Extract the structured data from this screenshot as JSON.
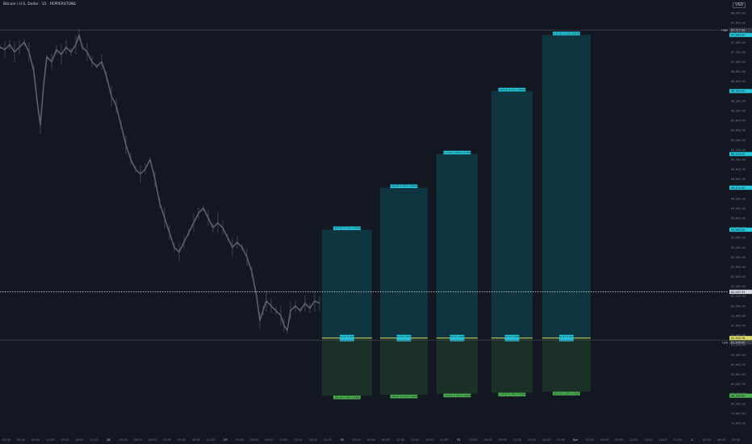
{
  "header": {
    "symbol_title": "Bitcoin / U.S. Dollar · 15 · PEPPERSTONE",
    "currency": "USD"
  },
  "colors": {
    "background": "#131722",
    "candle": "#5d606b",
    "target_zone": "#0f3a44",
    "target_label": "#26c6da",
    "stop_zone": "#1d3328",
    "stop_label": "#4caf50",
    "entry_line": "#d8d867",
    "price_line": "#e0e0e0"
  },
  "chart_data": {
    "type": "line",
    "y_axis": {
      "range": [
        79500,
        88100
      ],
      "ticks": [
        "88,000.00",
        "87,800.00",
        "87,600.00",
        "87,400.00",
        "87,200.00",
        "87,000.00",
        "86,800.00",
        "86,600.00",
        "86,400.00",
        "86,200.00",
        "86,000.00",
        "85,800.00",
        "85,600.00",
        "85,400.00",
        "85,200.00",
        "85,000.00",
        "84,800.00",
        "84,600.00",
        "84,400.00",
        "84,200.00",
        "84,000.00",
        "83,800.00",
        "83,600.00",
        "83,400.00",
        "83,200.00",
        "83,000.00",
        "82,800.00",
        "82,600.00",
        "82,400.00",
        "82,200.00",
        "82,000.00",
        "81,800.00",
        "81,600.00",
        "81,400.00",
        "81,200.00",
        "81,000.00",
        "80,800.00",
        "80,600.00",
        "80,400.00",
        "80,200.00",
        "80,000.00",
        "79,800.00",
        "79,600.00"
      ]
    },
    "x_axis": {
      "ticks": [
        "03:00",
        "06:00",
        "09:00",
        "12:00",
        "15:00",
        "18:00",
        "21:00",
        "28",
        "03:00",
        "06:00",
        "09:00",
        "12:00",
        "15:00",
        "18:00",
        "21:00",
        "29",
        "03:00",
        "06:00",
        "09:00",
        "12:00",
        "15:00",
        "18:00",
        "21:00",
        "30",
        "03:00",
        "06:00",
        "09:00",
        "12:00",
        "15:00",
        "18:00",
        "21:00",
        "31",
        "03:00",
        "06:00",
        "09:00",
        "12:00",
        "15:00",
        "18:00",
        "21:00",
        "Apr",
        "03:00",
        "06:00",
        "09:00",
        "12:00",
        "15:00",
        "18:00",
        "21:00",
        "2",
        "03:00",
        "06:00",
        "09:00"
      ]
    },
    "price_series": [
      [
        0,
        87300
      ],
      [
        6,
        87250
      ],
      [
        12,
        87350
      ],
      [
        18,
        87200
      ],
      [
        24,
        87300
      ],
      [
        30,
        87400
      ],
      [
        36,
        87200
      ],
      [
        42,
        86800
      ],
      [
        46,
        86200
      ],
      [
        50,
        85700
      ],
      [
        54,
        86500
      ],
      [
        58,
        87100
      ],
      [
        64,
        87000
      ],
      [
        70,
        87250
      ],
      [
        76,
        87150
      ],
      [
        82,
        87300
      ],
      [
        88,
        87200
      ],
      [
        94,
        87350
      ],
      [
        98,
        87550
      ],
      [
        102,
        87300
      ],
      [
        108,
        87200
      ],
      [
        114,
        87000
      ],
      [
        120,
        86900
      ],
      [
        126,
        87000
      ],
      [
        132,
        86700
      ],
      [
        138,
        86300
      ],
      [
        144,
        86100
      ],
      [
        150,
        85700
      ],
      [
        156,
        85300
      ],
      [
        162,
        85000
      ],
      [
        168,
        84800
      ],
      [
        174,
        84700
      ],
      [
        180,
        84800
      ],
      [
        186,
        85000
      ],
      [
        192,
        84600
      ],
      [
        198,
        84100
      ],
      [
        204,
        83800
      ],
      [
        210,
        83500
      ],
      [
        216,
        83200
      ],
      [
        222,
        83100
      ],
      [
        228,
        83300
      ],
      [
        234,
        83500
      ],
      [
        240,
        83700
      ],
      [
        246,
        83900
      ],
      [
        252,
        84000
      ],
      [
        258,
        83800
      ],
      [
        264,
        83600
      ],
      [
        270,
        83700
      ],
      [
        276,
        83600
      ],
      [
        282,
        83400
      ],
      [
        288,
        83200
      ],
      [
        294,
        83300
      ],
      [
        300,
        83200
      ],
      [
        306,
        83000
      ],
      [
        312,
        82700
      ],
      [
        318,
        82200
      ],
      [
        322,
        81700
      ],
      [
        326,
        81900
      ],
      [
        330,
        82100
      ],
      [
        336,
        82000
      ],
      [
        342,
        81900
      ],
      [
        348,
        81800
      ],
      [
        352,
        81600
      ],
      [
        356,
        81500
      ],
      [
        360,
        81900
      ],
      [
        366,
        82000
      ],
      [
        372,
        81900
      ],
      [
        378,
        82050
      ],
      [
        384,
        81950
      ],
      [
        390,
        82100
      ],
      [
        396,
        82050
      ]
    ],
    "current_price": 82287,
    "high_line": 87650,
    "low_line": 81300,
    "entry": 81340,
    "positions": [
      {
        "target": 83560,
        "stop": 80160,
        "target_label": "2,220.00 (2.73%) 222000",
        "entry_label": "822.43 (1.00%)",
        "stop_label": "1,180.00 (1.45%) 118000"
      },
      {
        "target": 84420,
        "stop": 80180,
        "target_label": "3,080.00 (3.78%) 308000",
        "entry_label": "822.43 (1.00%)",
        "stop_label": "1,160.00 (1.43%) 116000"
      },
      {
        "target": 85110,
        "stop": 80200,
        "target_label": "3,770.00 (4.63%) 377000",
        "entry_label": "822.43 (1.00%)",
        "stop_label": "1,140.00 (1.40%) 114000"
      },
      {
        "target": 86400,
        "stop": 80220,
        "target_label": "5,060.00 (6.22%) 506000",
        "entry_label": "822.43 (1.00%)",
        "stop_label": "1,120.00 (1.38%) 112000"
      },
      {
        "target": 87550,
        "stop": 80240,
        "target_label": "6,210.00 (7.63%) 621000",
        "entry_label": "822.43 (1.00%)",
        "stop_label": "1,100.00 (1.35%) 110000"
      }
    ],
    "axis_tags": [
      {
        "label": "High",
        "value": "87,717.34",
        "price": 87650,
        "kind": "hl"
      },
      {
        "label": "",
        "value": "87,560.00",
        "price": 87550,
        "kind": "target"
      },
      {
        "label": "",
        "value": "86,394.00",
        "price": 86400,
        "kind": "target"
      },
      {
        "label": "",
        "value": "85,110.00",
        "price": 85110,
        "kind": "target"
      },
      {
        "label": "",
        "value": "84,420.00",
        "price": 84420,
        "kind": "target"
      },
      {
        "label": "",
        "value": "83,560.00",
        "price": 83560,
        "kind": "target"
      },
      {
        "label": "",
        "value": "82,287.93",
        "price": 82287,
        "kind": "price"
      },
      {
        "label": "",
        "value": "81,340.76",
        "price": 81340,
        "kind": "entry"
      },
      {
        "label": "Low",
        "value": "81,306.63",
        "price": 81250,
        "kind": "hl"
      },
      {
        "label": "",
        "value": "80,160.00",
        "price": 80160,
        "kind": "stop"
      }
    ]
  }
}
